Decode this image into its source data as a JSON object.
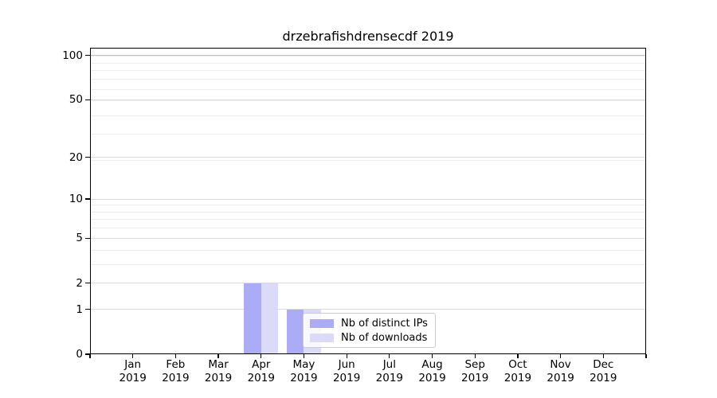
{
  "chart_data": {
    "type": "bar",
    "title": "drzebrafishdrensecdf 2019",
    "categories": [
      "Jan",
      "Feb",
      "Mar",
      "Apr",
      "May",
      "Jun",
      "Jul",
      "Aug",
      "Sep",
      "Oct",
      "Nov",
      "Dec"
    ],
    "year_label": "2019",
    "series": [
      {
        "name": "Nb of distinct IPs",
        "color": "#acacf6",
        "values": [
          0,
          0,
          0,
          2,
          1,
          0,
          0,
          0,
          0,
          0,
          0,
          0
        ]
      },
      {
        "name": "Nb of downloads",
        "color": "#dbdbf9",
        "values": [
          0,
          0,
          0,
          2,
          1,
          0,
          0,
          0,
          0,
          0,
          0,
          0
        ]
      }
    ],
    "yticks": [
      0,
      1,
      2,
      5,
      10,
      20,
      50,
      100
    ],
    "ylim": [
      0,
      112
    ],
    "yscale": "log1p",
    "xlabel": "",
    "ylabel": "",
    "grid": "horizontal-major-and-minor",
    "legend_position": "lower-center"
  },
  "colors": {
    "axis": "#000000",
    "text": "#000000",
    "grid_major": "#dadada",
    "grid_minor": "#ededed",
    "grid_top": "#c0c0c0",
    "legend_border": "#cccccc"
  }
}
